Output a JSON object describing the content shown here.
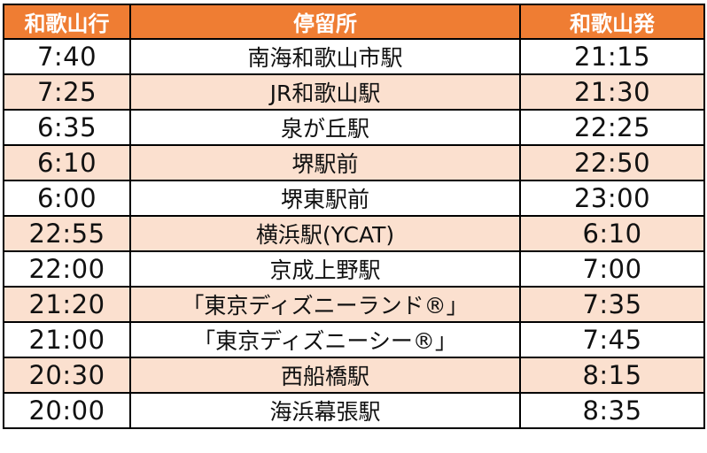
{
  "headers": {
    "to_wakayama": "和歌山行",
    "stop": "停留所",
    "from_wakayama": "和歌山発"
  },
  "rows": [
    {
      "to_wakayama": "7:40",
      "stop": "南海和歌山市駅",
      "from_wakayama": "21:15"
    },
    {
      "to_wakayama": "7:25",
      "stop": "JR和歌山駅",
      "from_wakayama": "21:30"
    },
    {
      "to_wakayama": "6:35",
      "stop": "泉が丘駅",
      "from_wakayama": "22:25"
    },
    {
      "to_wakayama": "6:10",
      "stop": "堺駅前",
      "from_wakayama": "22:50"
    },
    {
      "to_wakayama": "6:00",
      "stop": "堺東駅前",
      "from_wakayama": "23:00"
    },
    {
      "to_wakayama": "22:55",
      "stop": "横浜駅(YCAT)",
      "from_wakayama": "6:10"
    },
    {
      "to_wakayama": "22:00",
      "stop": "京成上野駅",
      "from_wakayama": "7:00"
    },
    {
      "to_wakayama": "21:20",
      "stop": "「東京ディズニーランド®」",
      "from_wakayama": "7:35"
    },
    {
      "to_wakayama": "21:00",
      "stop": "「東京ディズニーシー®」",
      "from_wakayama": "7:45"
    },
    {
      "to_wakayama": "20:30",
      "stop": "西船橋駅",
      "from_wakayama": "8:15"
    },
    {
      "to_wakayama": "20:00",
      "stop": "海浜幕張駅",
      "from_wakayama": "8:35"
    }
  ],
  "colors": {
    "header_bg": "#ef7d33",
    "header_text": "#ffffff",
    "alt_row_bg": "#fbe0cf",
    "row_bg": "#ffffff"
  }
}
